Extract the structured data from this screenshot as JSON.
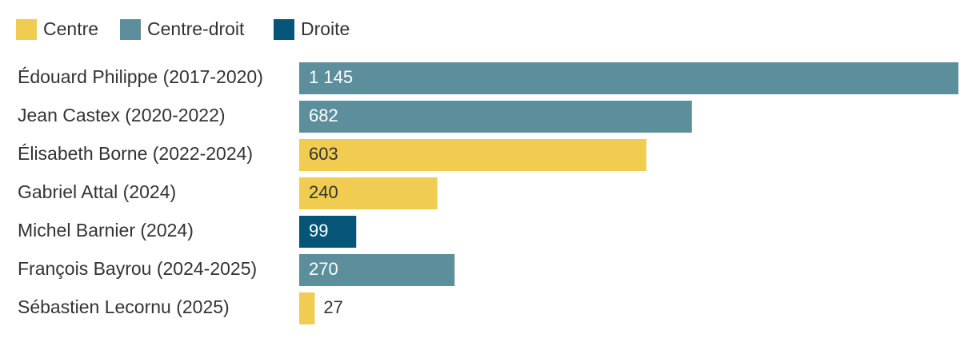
{
  "chart_data": {
    "type": "bar",
    "orientation": "horizontal",
    "legend": {
      "placement": "top-left",
      "items": [
        {
          "name": "Centre",
          "color": "#f0cd50"
        },
        {
          "name": "Centre-droit",
          "color": "#5d8e9c"
        },
        {
          "name": "Droite",
          "color": "#045578"
        }
      ]
    },
    "categories": [
      "Édouard Philippe (2017-2020)",
      "Jean Castex (2020-2022)",
      "Élisabeth Borne (2022-2024)",
      "Gabriel Attal (2024)",
      "Michel Barnier (2024)",
      "François Bayrou (2024-2025)",
      "Sébastien Lecornu (2025)"
    ],
    "values": [
      1145,
      682,
      603,
      240,
      99,
      270,
      27
    ],
    "value_labels": [
      "1 145",
      "682",
      "603",
      "240",
      "99",
      "270",
      "27"
    ],
    "groups": [
      "Centre-droit",
      "Centre-droit",
      "Centre",
      "Centre",
      "Droite",
      "Centre-droit",
      "Centre"
    ],
    "xlim": [
      0,
      1145
    ],
    "grid": false,
    "colors": {
      "label_text": "#333333",
      "value_text_on_dark": "#ffffff",
      "value_text_on_light": "#333333"
    }
  }
}
